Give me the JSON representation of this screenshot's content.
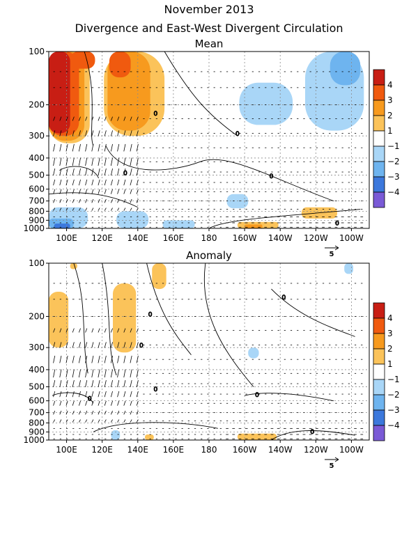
{
  "title": "November 2013",
  "subtitle": "Divergence and East-West Divergent Circulation",
  "colors": {
    "pos4": "#c81e14",
    "pos3": "#f05a0f",
    "pos2": "#f79a1e",
    "pos1": "#fbc35a",
    "neg1": "#a9d6f7",
    "neg2": "#6eb4ef",
    "neg3": "#3c78dc",
    "neg4": "#7a5ad6"
  },
  "colorbar": {
    "labels": [
      "4",
      "3",
      "2",
      "1",
      "−1",
      "−2",
      "−3",
      "−4"
    ]
  },
  "reference_vector_label": "5",
  "chart_data": [
    {
      "type": "heatmap",
      "title": "Mean",
      "x_ticks": [
        "100E",
        "120E",
        "140E",
        "160E",
        "180",
        "160W",
        "140W",
        "120W",
        "100W"
      ],
      "x_tick_lon": [
        100,
        120,
        140,
        160,
        180,
        200,
        220,
        240,
        260
      ],
      "xlim": [
        90,
        270
      ],
      "y_ticks": [
        "100",
        "200",
        "300",
        "400",
        "500",
        "600",
        "700",
        "800",
        "900",
        "1000"
      ],
      "y_tick_hpa": [
        100,
        200,
        300,
        400,
        500,
        600,
        700,
        800,
        900,
        1000
      ],
      "ylim": [
        1000,
        100
      ],
      "y_scale": "log",
      "contour_levels": [
        -4,
        -3,
        -2,
        -1,
        1,
        2,
        3,
        4
      ],
      "zero_contour": "0",
      "grid": true,
      "regions": [
        {
          "level": 4,
          "lon": [
            90,
            102
          ],
          "p": [
            100,
            290
          ]
        },
        {
          "level": 3,
          "lon": [
            90,
            107
          ],
          "p": [
            100,
            300
          ]
        },
        {
          "level": 2,
          "lon": [
            90,
            110
          ],
          "p": [
            100,
            320
          ]
        },
        {
          "level": 1,
          "lon": [
            90,
            113
          ],
          "p": [
            100,
            330
          ]
        },
        {
          "level": 3,
          "lon": [
            102,
            116
          ],
          "p": [
            100,
            125
          ]
        },
        {
          "level": 3,
          "lon": [
            124,
            136
          ],
          "p": [
            100,
            140
          ]
        },
        {
          "level": 2,
          "lon": [
            123,
            147
          ],
          "p": [
            100,
            280
          ]
        },
        {
          "level": 1,
          "lon": [
            121,
            155
          ],
          "p": [
            100,
            300
          ]
        },
        {
          "level": -1,
          "lon": [
            197,
            227
          ],
          "p": [
            150,
            260
          ]
        },
        {
          "level": -1,
          "lon": [
            234,
            267
          ],
          "p": [
            100,
            280
          ]
        },
        {
          "level": -2,
          "lon": [
            248,
            265
          ],
          "p": [
            100,
            155
          ]
        },
        {
          "level": -1,
          "lon": [
            190,
            202
          ],
          "p": [
            640,
            770
          ]
        },
        {
          "level": 1,
          "lon": [
            232,
            252
          ],
          "p": [
            760,
            880
          ]
        },
        {
          "level": -1,
          "lon": [
            90,
            112
          ],
          "p": [
            760,
            1000
          ]
        },
        {
          "level": -2,
          "lon": [
            90,
            104
          ],
          "p": [
            880,
            1000
          ]
        },
        {
          "level": -3,
          "lon": [
            93,
            102
          ],
          "p": [
            940,
            1000
          ]
        },
        {
          "level": -1,
          "lon": [
            128,
            146
          ],
          "p": [
            800,
            1000
          ]
        },
        {
          "level": -1,
          "lon": [
            154,
            172
          ],
          "p": [
            900,
            1000
          ]
        },
        {
          "level": 1,
          "lon": [
            196,
            219
          ],
          "p": [
            920,
            1000
          ]
        },
        {
          "level": 2,
          "lon": [
            200,
            210
          ],
          "p": [
            950,
            1000
          ]
        }
      ]
    },
    {
      "type": "heatmap",
      "title": "Anomaly",
      "x_ticks": [
        "100E",
        "120E",
        "140E",
        "160E",
        "180",
        "160W",
        "140W",
        "120W",
        "100W"
      ],
      "x_tick_lon": [
        100,
        120,
        140,
        160,
        180,
        200,
        220,
        240,
        260
      ],
      "xlim": [
        90,
        270
      ],
      "y_ticks": [
        "100",
        "200",
        "300",
        "400",
        "500",
        "600",
        "700",
        "800",
        "900",
        "1000"
      ],
      "y_tick_hpa": [
        100,
        200,
        300,
        400,
        500,
        600,
        700,
        800,
        900,
        1000
      ],
      "ylim": [
        1000,
        100
      ],
      "y_scale": "log",
      "contour_levels": [
        -4,
        -3,
        -2,
        -1,
        1,
        2,
        3,
        4
      ],
      "zero_contour": "0",
      "grid": true,
      "regions": [
        {
          "level": 1,
          "lon": [
            90,
            101
          ],
          "p": [
            145,
            300
          ]
        },
        {
          "level": 1,
          "lon": [
            102,
            106
          ],
          "p": [
            100,
            108
          ]
        },
        {
          "level": 1,
          "lon": [
            126,
            139
          ],
          "p": [
            130,
            320
          ]
        },
        {
          "level": 1,
          "lon": [
            148,
            156
          ],
          "p": [
            100,
            140
          ]
        },
        {
          "level": -1,
          "lon": [
            202,
            208
          ],
          "p": [
            300,
            345
          ]
        },
        {
          "level": -1,
          "lon": [
            256,
            261
          ],
          "p": [
            100,
            115
          ]
        },
        {
          "level": -1,
          "lon": [
            125,
            130
          ],
          "p": [
            880,
            1000
          ]
        },
        {
          "level": 1,
          "lon": [
            144,
            149
          ],
          "p": [
            930,
            1000
          ]
        },
        {
          "level": 1,
          "lon": [
            196,
            218
          ],
          "p": [
            920,
            1000
          ]
        }
      ]
    }
  ]
}
